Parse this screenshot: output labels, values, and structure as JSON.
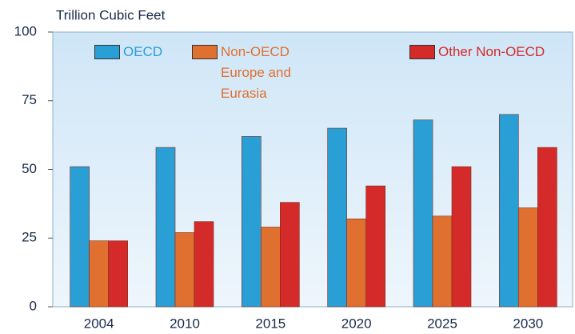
{
  "chart_data": {
    "type": "bar",
    "y_axis_label": "Trillion Cubic Feet",
    "categories": [
      "2004",
      "2010",
      "2015",
      "2020",
      "2025",
      "2030"
    ],
    "series": [
      {
        "name": "OECD",
        "color": "#2a9fd6",
        "values": [
          51,
          58,
          62,
          65,
          68,
          70
        ]
      },
      {
        "name": "Non-OECD Europe and Eurasia",
        "color": "#e07030",
        "values": [
          24,
          27,
          29,
          32,
          33,
          36
        ]
      },
      {
        "name": "Other Non-OECD",
        "color": "#d42a2a",
        "values": [
          24,
          31,
          38,
          44,
          51,
          58
        ]
      }
    ],
    "ylim": [
      0,
      100
    ],
    "yticks": [
      0,
      25,
      50,
      75,
      100
    ],
    "grid": false
  }
}
